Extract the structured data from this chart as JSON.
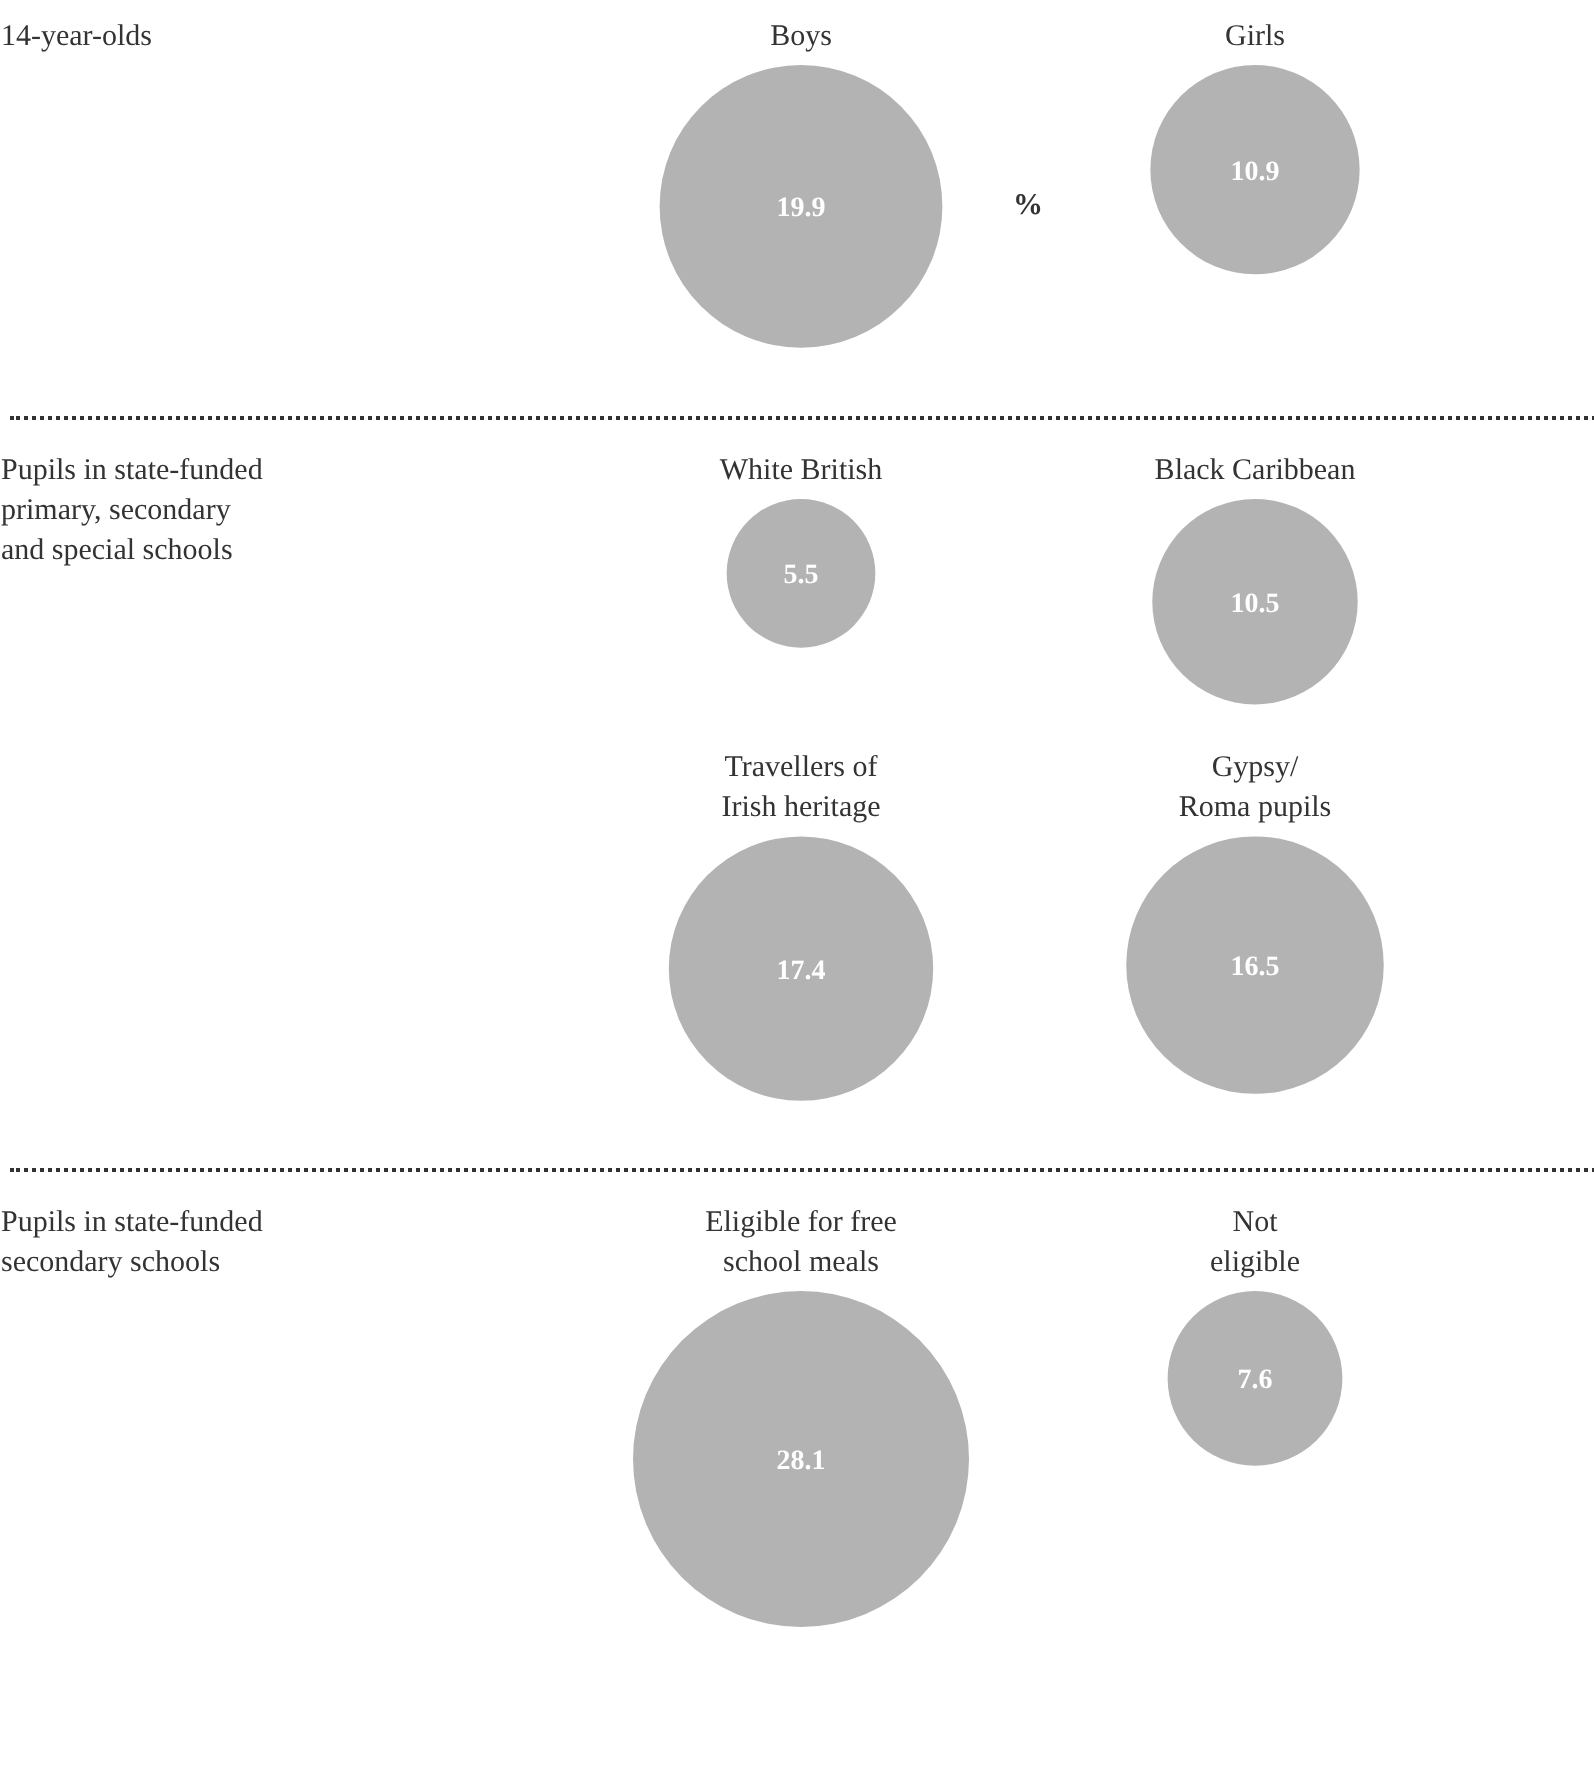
{
  "chart_data": [
    {
      "type": "other",
      "title": "14-year-olds",
      "categories": [
        "Boys",
        "Girls"
      ],
      "values": [
        19.9,
        10.9
      ],
      "color": "#b3b3b3",
      "data_labels": true,
      "annotations": [
        "%"
      ]
    },
    {
      "type": "other",
      "title": "Pupils in state-funded\nprimary, secondary\nand special schools",
      "categories": [
        "White British",
        "Black Caribbean",
        "Travellers of\nIrish heritage",
        "Gypsy/\nRoma pupils"
      ],
      "values": [
        5.5,
        10.5,
        17.4,
        16.5
      ],
      "color": "#b3b3b3",
      "data_labels": true
    },
    {
      "type": "other",
      "title": "Pupils in state-funded\nsecondary schools",
      "categories": [
        "Eligible for free\nschool meals",
        "Not\neligible"
      ],
      "values": [
        28.1,
        7.6
      ],
      "color": "#b3b3b3",
      "data_labels": true
    }
  ]
}
